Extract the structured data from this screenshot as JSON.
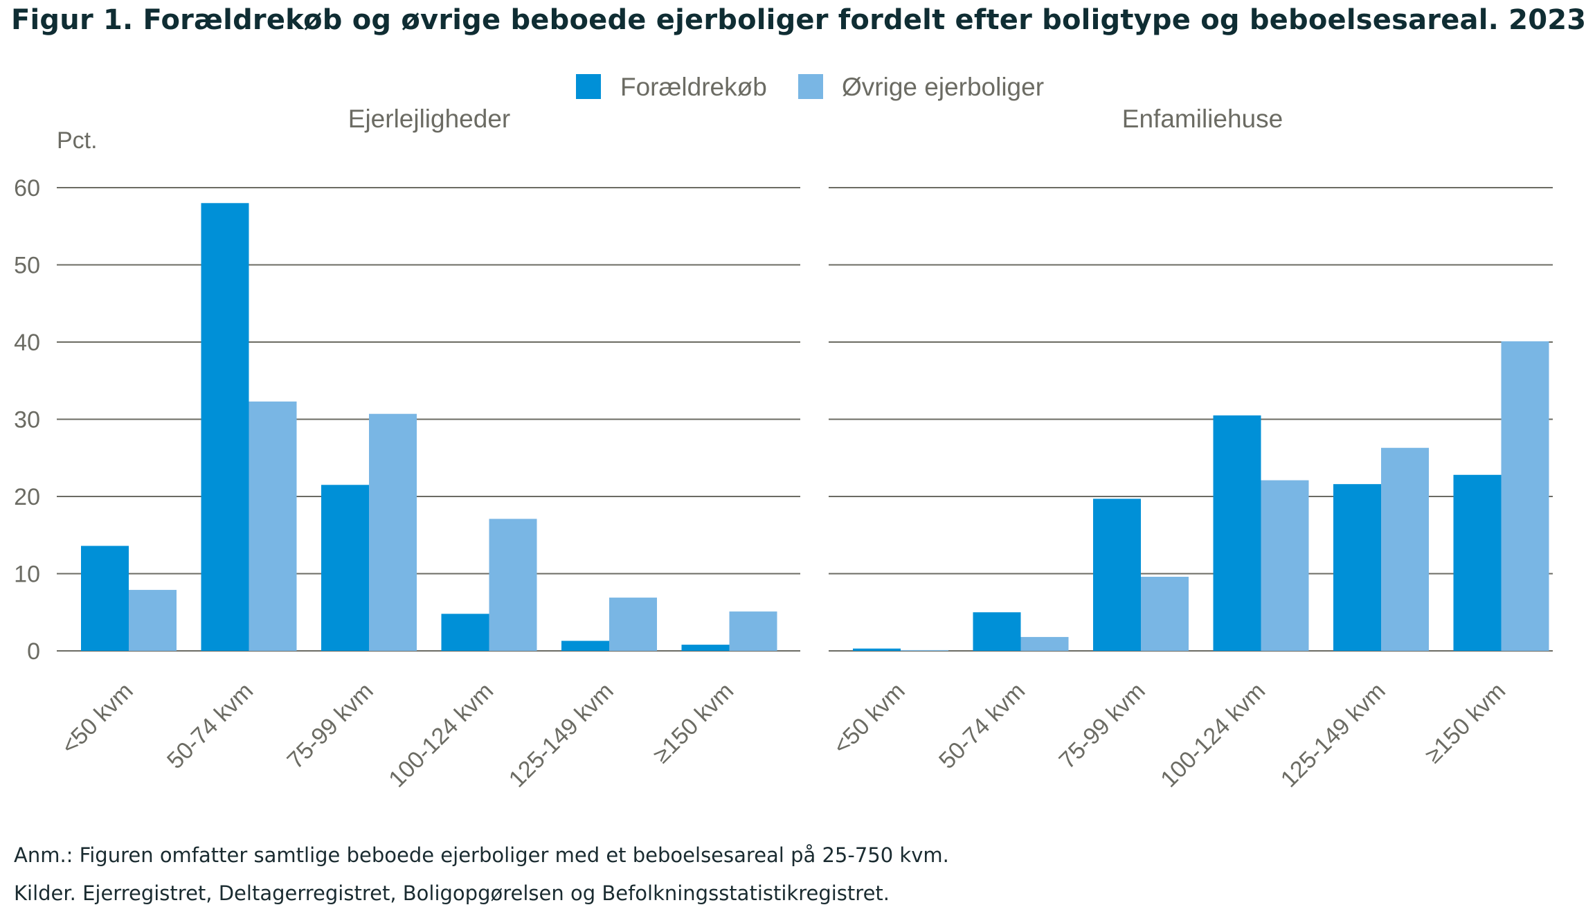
{
  "title": "Figur 1. Forældrekøb og øvrige beboede ejerboliger fordelt efter boligtype og beboelsesareal. 2023",
  "note": "Anm.: Figuren omfatter samtlige beboede ejerboliger med et beboelsesareal på 25-750 kvm.",
  "source": "Kilder. Ejerregistret, Deltagerregistret, Boligopgørelsen og Befolkningsstatistikregistret.",
  "colors": {
    "series1": "#0090d7",
    "series2": "#79b6e4",
    "grid": "#6b6b63",
    "text": "#6b6b63"
  },
  "chart_data": {
    "type": "bar",
    "ylabel": "Pct.",
    "ylim": [
      0,
      60
    ],
    "yticks": [
      0,
      10,
      20,
      30,
      40,
      50,
      60
    ],
    "legend": {
      "placement": "top",
      "entries": [
        "Forældrekøb",
        "Øvrige ejerboliger"
      ]
    },
    "grid": true,
    "categories": [
      "<50 kvm",
      "50-74 kvm",
      "75-99 kvm",
      "100-124 kvm",
      "125-149 kvm",
      "≥150 kvm"
    ],
    "panels": [
      {
        "title": "Ejerlejligheder",
        "series": [
          {
            "name": "Forældrekøb",
            "values": [
              13.6,
              58.0,
              21.5,
              4.8,
              1.3,
              0.8
            ]
          },
          {
            "name": "Øvrige ejerboliger",
            "values": [
              7.9,
              32.3,
              30.7,
              17.1,
              6.9,
              5.1
            ]
          }
        ]
      },
      {
        "title": "Enfamiliehuse",
        "series": [
          {
            "name": "Forældrekøb",
            "values": [
              0.3,
              5.0,
              19.7,
              30.5,
              21.6,
              22.8
            ]
          },
          {
            "name": "Øvrige ejerboliger",
            "values": [
              0.1,
              1.8,
              9.6,
              22.1,
              26.3,
              40.1
            ]
          }
        ]
      }
    ]
  }
}
